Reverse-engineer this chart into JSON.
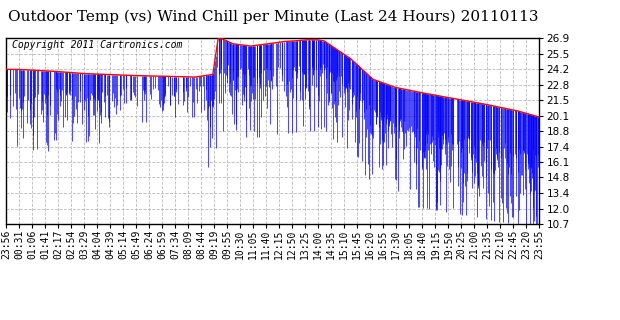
{
  "title": "Outdoor Temp (vs) Wind Chill per Minute (Last 24 Hours) 20110113",
  "copyright_text": "Copyright 2011 Cartronics.com",
  "background_color": "#ffffff",
  "plot_bg_color": "#ffffff",
  "grid_color": "#aaaaaa",
  "line_red_color": "#ff0000",
  "bar_blue_color": "#0000ff",
  "ylim_min": 10.7,
  "ylim_max": 26.9,
  "yticks": [
    10.7,
    12.0,
    13.4,
    14.8,
    16.1,
    17.4,
    18.8,
    20.1,
    21.5,
    22.8,
    24.2,
    25.5,
    26.9
  ],
  "title_fontsize": 11,
  "copyright_fontsize": 7,
  "tick_fontsize": 7,
  "n_points": 1440,
  "xtick_labels": [
    "23:56",
    "00:31",
    "01:06",
    "01:41",
    "02:17",
    "02:54",
    "03:29",
    "04:04",
    "04:39",
    "05:14",
    "05:49",
    "06:24",
    "06:59",
    "07:34",
    "08:09",
    "08:44",
    "09:19",
    "09:55",
    "10:30",
    "11:05",
    "11:40",
    "12:15",
    "12:50",
    "13:25",
    "14:00",
    "14:35",
    "15:10",
    "15:45",
    "16:20",
    "16:55",
    "17:30",
    "18:05",
    "18:40",
    "19:15",
    "19:50",
    "20:25",
    "21:00",
    "21:35",
    "22:10",
    "22:45",
    "23:20",
    "23:55"
  ]
}
